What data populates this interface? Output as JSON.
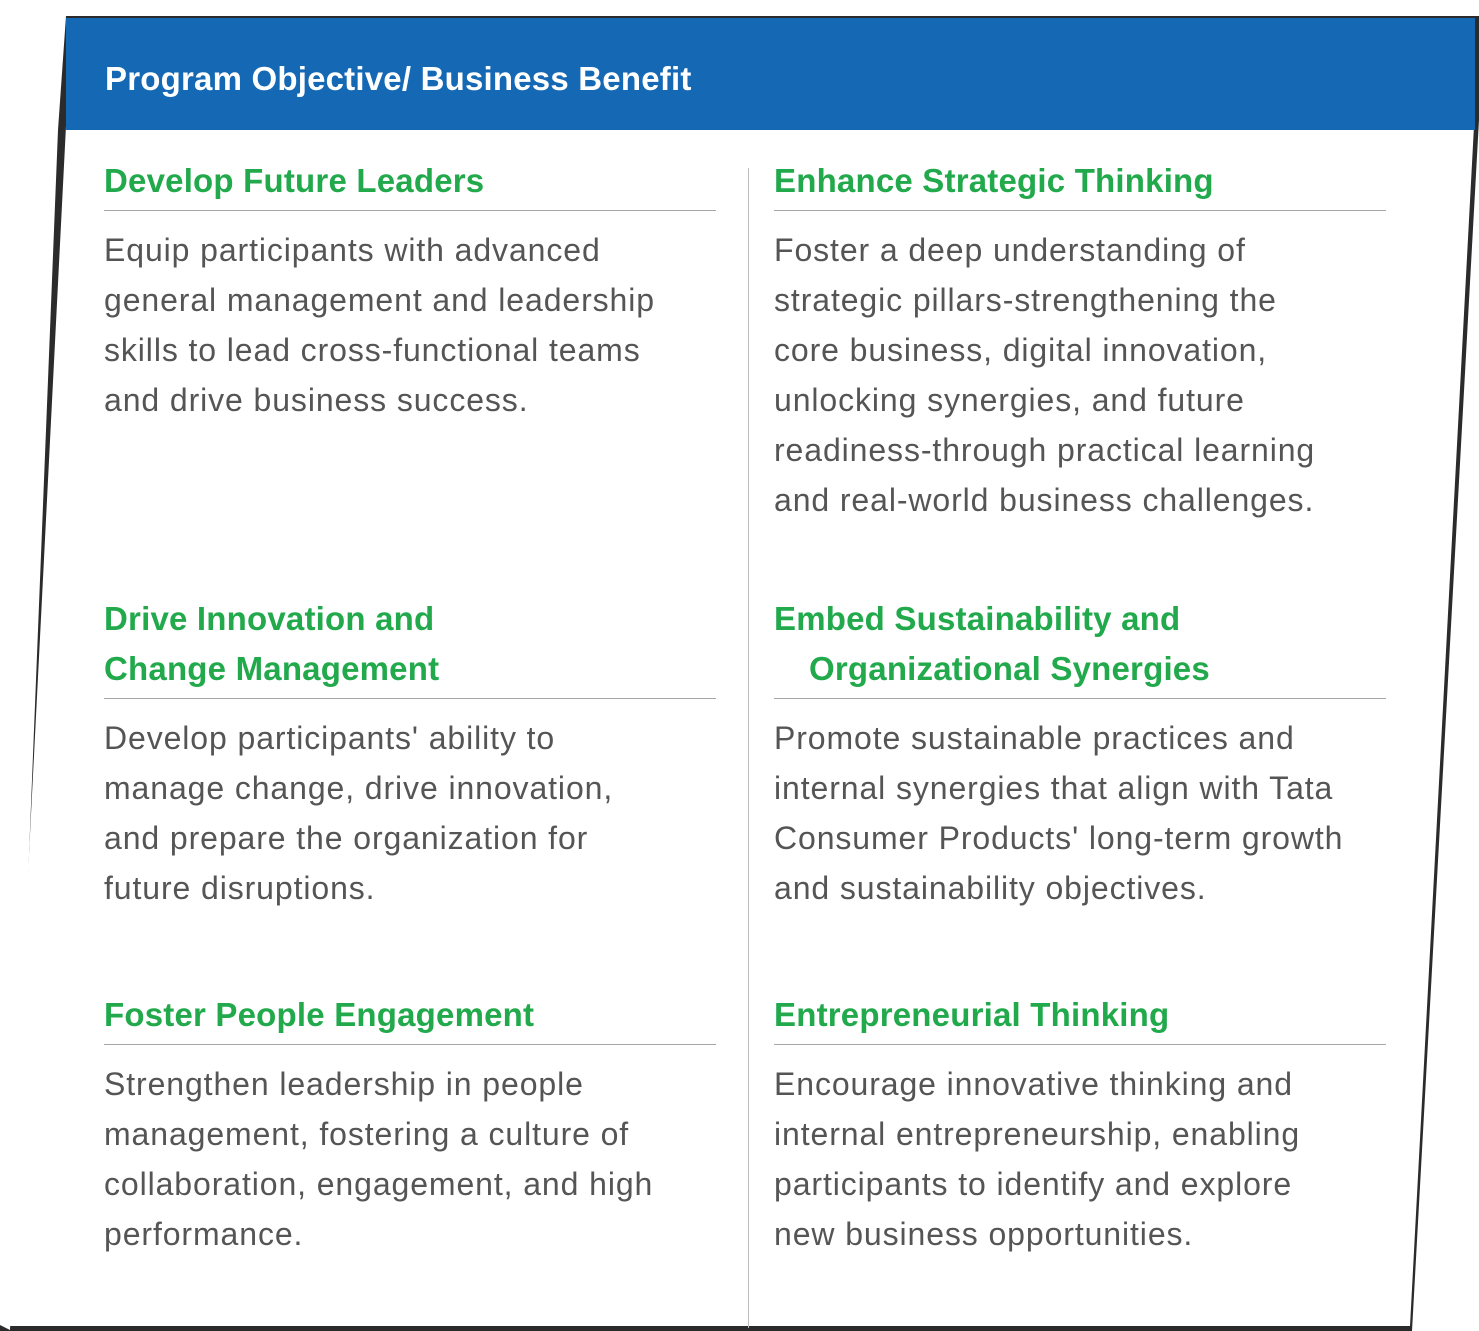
{
  "header": {
    "title": "Program Objective/ Business Benefit"
  },
  "colors": {
    "header_bg": "#1468b4",
    "title_green": "#21a94c",
    "body_gray": "#555555",
    "divider": "#a6a6a6"
  },
  "sections": [
    {
      "title_lines": [
        "Develop Future Leaders"
      ],
      "body_lines": [
        "Equip participants with advanced",
        "general management and leadership",
        "skills to lead cross-functional teams",
        "and drive business success."
      ]
    },
    {
      "title_lines": [
        "Enhance Strategic Thinking"
      ],
      "body_lines": [
        "Foster a deep understanding of",
        "strategic pillars-strengthening the",
        "core business, digital innovation,",
        "unlocking synergies, and future",
        "readiness-through practical learning",
        "and real-world business challenges."
      ]
    },
    {
      "title_lines": [
        "Drive Innovation and",
        "Change Management"
      ],
      "body_lines": [
        "Develop participants' ability to",
        "manage change, drive innovation,",
        "and prepare the organization for",
        "future disruptions."
      ]
    },
    {
      "title_lines": [
        "Embed Sustainability and",
        "Organizational Synergies"
      ],
      "body_lines": [
        "Promote sustainable practices and",
        "internal synergies that align with Tata",
        "Consumer Products' long-term growth",
        "and sustainability objectives."
      ]
    },
    {
      "title_lines": [
        "Foster People Engagement"
      ],
      "body_lines": [
        "Strengthen leadership in people",
        "management, fostering a culture of",
        "collaboration, engagement, and high",
        "performance."
      ]
    },
    {
      "title_lines": [
        "Entrepreneurial Thinking"
      ],
      "body_lines": [
        "Encourage innovative thinking and",
        "internal entrepreneurship, enabling",
        "participants to identify and explore",
        "new business opportunities."
      ]
    }
  ]
}
